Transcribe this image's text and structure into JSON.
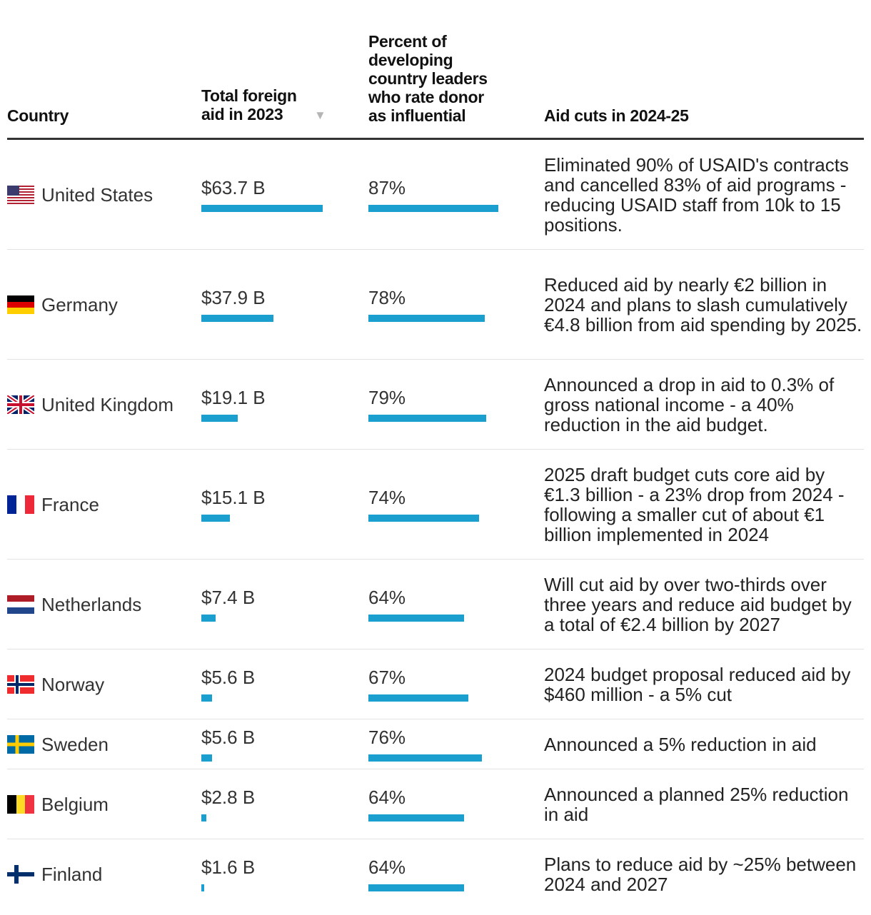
{
  "headers": {
    "country": "Country",
    "aid": "Total foreign aid in 2023",
    "percent": "Percent of developing country leaders who rate donor as influential",
    "cuts": "Aid cuts in 2024-25"
  },
  "colors": {
    "bar": "#1a9fcf",
    "rule": "#333333"
  },
  "chart_data": {
    "type": "table",
    "columns": [
      "Country",
      "Total foreign aid in 2023",
      "Percent of developing country leaders who rate donor as influential",
      "Aid cuts in 2024-25"
    ],
    "sorted_by": "Total foreign aid in 2023",
    "sort_direction": "descending",
    "aid_max": 63.7,
    "pct_max": 87,
    "rows": [
      {
        "country": "United States",
        "flag": "us-flag-icon",
        "aid_label": "$63.7 B",
        "aid": 63.7,
        "pct_label": "87%",
        "pct": 87,
        "cuts": "Eliminated 90% of USAID's contracts and cancelled 83% of aid programs - reducing USAID staff from 10k to 15 positions."
      },
      {
        "country": "Germany",
        "flag": "de-flag-icon",
        "aid_label": "$37.9 B",
        "aid": 37.9,
        "pct_label": "78%",
        "pct": 78,
        "cuts": "Reduced aid by nearly €2 billion in 2024 and plans to slash cumulatively €4.8 billion from aid spending by 2025."
      },
      {
        "country": "United Kingdom",
        "flag": "gb-flag-icon",
        "aid_label": "$19.1 B",
        "aid": 19.1,
        "pct_label": "79%",
        "pct": 79,
        "cuts": "Announced a drop in aid to 0.3% of gross national income - a 40% reduction in the aid budget."
      },
      {
        "country": "France",
        "flag": "fr-flag-icon",
        "aid_label": "$15.1 B",
        "aid": 15.1,
        "pct_label": "74%",
        "pct": 74,
        "cuts": "2025 draft budget cuts core aid by €1.3 billion - a 23% drop from 2024 - following a smaller cut of about €1 billion implemented in 2024"
      },
      {
        "country": "Netherlands",
        "flag": "nl-flag-icon",
        "aid_label": "$7.4 B",
        "aid": 7.4,
        "pct_label": "64%",
        "pct": 64,
        "cuts": "Will cut aid by over two-thirds over three years and reduce aid budget by a total of €2.4 billion by 2027"
      },
      {
        "country": "Norway",
        "flag": "no-flag-icon",
        "aid_label": "$5.6 B",
        "aid": 5.6,
        "pct_label": "67%",
        "pct": 67,
        "cuts": "2024 budget proposal reduced aid by $460 million - a 5% cut"
      },
      {
        "country": "Sweden",
        "flag": "se-flag-icon",
        "aid_label": "$5.6 B",
        "aid": 5.6,
        "pct_label": "76%",
        "pct": 76,
        "cuts": "Announced a 5% reduction in aid"
      },
      {
        "country": "Belgium",
        "flag": "be-flag-icon",
        "aid_label": "$2.8 B",
        "aid": 2.8,
        "pct_label": "64%",
        "pct": 64,
        "cuts": "Announced a planned 25% reduction in aid"
      },
      {
        "country": "Finland",
        "flag": "fi-flag-icon",
        "aid_label": "$1.6 B",
        "aid": 1.6,
        "pct_label": "64%",
        "pct": 64,
        "cuts": "Plans to reduce aid by ~25% between 2024 and 2027"
      }
    ]
  }
}
